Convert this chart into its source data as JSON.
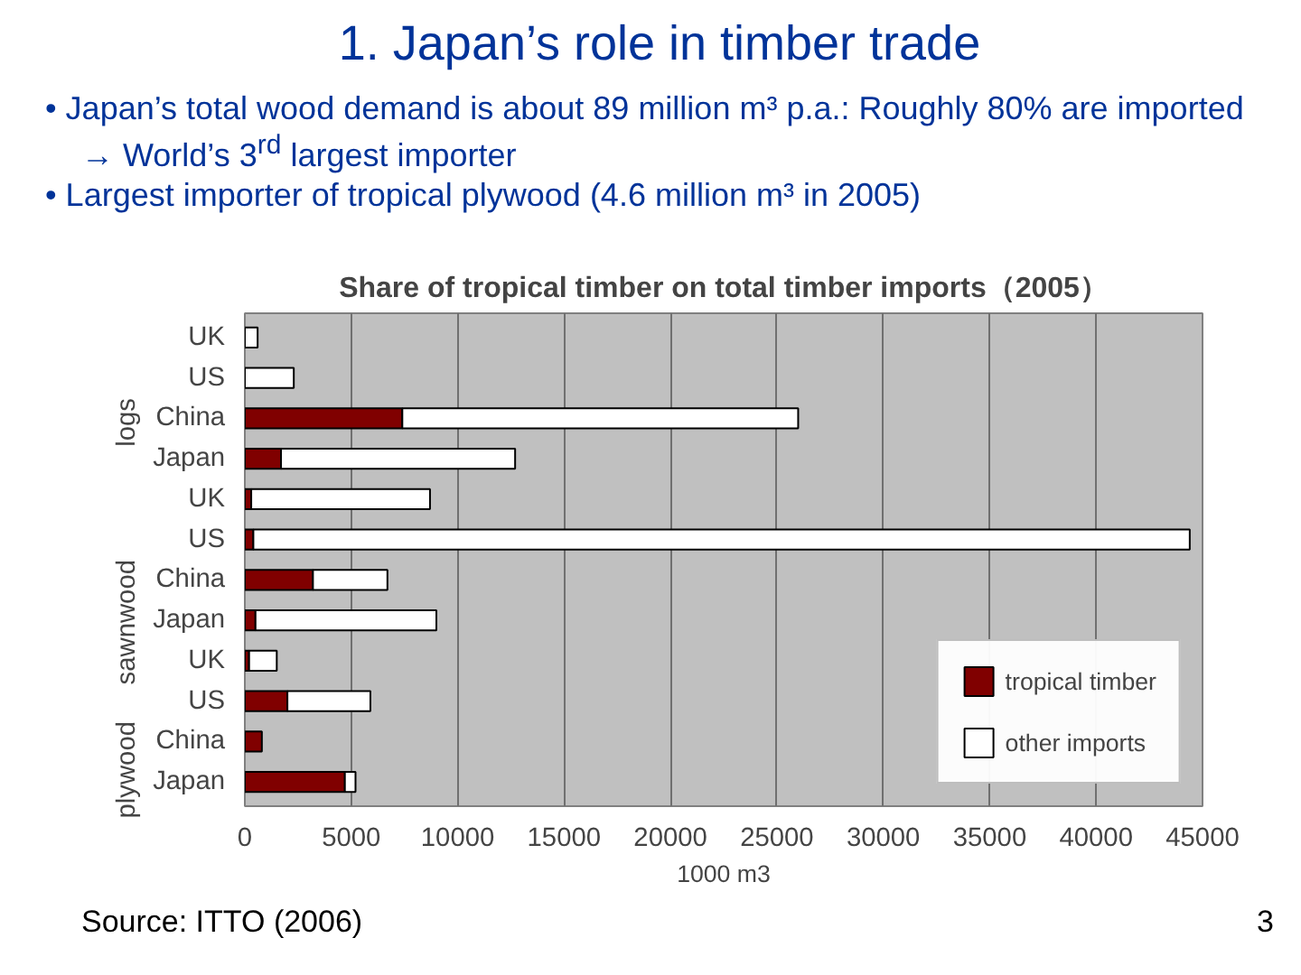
{
  "chart_data": {
    "type": "bar",
    "orientation": "horizontal",
    "stacked": true,
    "title": "1. Japan’s role in timber trade",
    "subtitle": "Share of tropical timber on total timber imports（2005）",
    "xlabel": "1000 m3",
    "categories": [
      "UK",
      "US",
      "China",
      "Japan",
      "UK",
      "US",
      "China",
      "Japan",
      "UK",
      "US",
      "China",
      "Japan"
    ],
    "series": [
      {
        "name": "tropical timber",
        "color": "#800000",
        "values": [
          null,
          null,
          7400,
          1700,
          300,
          400,
          3200,
          500,
          200,
          2000,
          800,
          4700
        ]
      },
      {
        "name": "other imports",
        "color": "#ffffff",
        "values": [
          600,
          2300,
          18600,
          11000,
          8400,
          44000,
          3500,
          8500,
          1300,
          3900,
          null,
          500
        ]
      }
    ],
    "xlim": [
      0,
      45000
    ],
    "xticks": [
      0,
      5000,
      10000,
      15000,
      20000,
      25000,
      30000,
      35000,
      40000,
      45000
    ],
    "grid": "x",
    "legend": "bottom right",
    "annotations": [
      "• Japan’s total wood demand is about 89 million m³ p.a.: Roughly 80% are imported → World’s 3$^{rd}$ largest importer",
      "• Largest importer of tropical plywood (4.6 million m³ in 2005)",
      "logs",
      "sawnwood",
      "plywood",
      "Source: ITTO (2006)",
      "3"
    ]
  }
}
